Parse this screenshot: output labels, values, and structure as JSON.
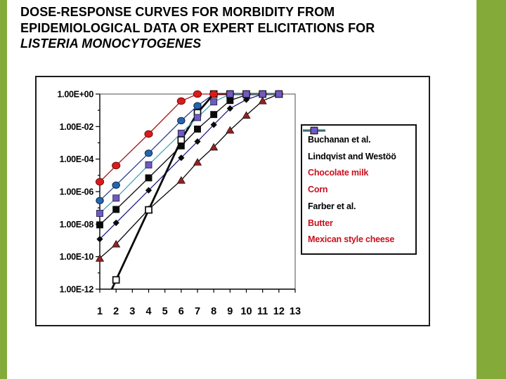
{
  "slide": {
    "title_line1": "DOSE-RESPONSE CURVES FOR MORBIDITY FROM",
    "title_line2": "EPIDEMIOLOGICAL DATA OR EXPERT ELICITATIONS FOR",
    "title_species": "LISTERIA MONOCYTOGENES",
    "accent_bar_color": "#84AA3A"
  },
  "chart_data": {
    "type": "line",
    "title": "",
    "xlabel": "",
    "ylabel": "",
    "grid": false,
    "legend_position": "right",
    "y_axis": {
      "scale": "log",
      "max": 1,
      "min": 1e-12,
      "tick_labels": [
        "1.00E+00",
        "1.00E-02",
        "1.00E-04",
        "1.00E-06",
        "1.00E-08",
        "1.00E-10",
        "1.00E-12"
      ]
    },
    "x_axis": {
      "min": 1,
      "max": 13,
      "tick_labels": [
        "1",
        "2",
        "3",
        "4",
        "5",
        "6",
        "7",
        "8",
        "9",
        "10",
        "11",
        "12",
        "13"
      ]
    },
    "red_label_color": "#C8101E",
    "series": [
      {
        "name": "Buchanan et al.",
        "label_color": "#000000",
        "line_color": "#22227A",
        "line_width": 1.3,
        "marker": "diamond",
        "marker_fill": "#0a0a0a",
        "marker_stroke": "#0a0a0a",
        "points": [
          [
            1,
            1.2e-09
          ],
          [
            2,
            1.2e-08
          ],
          [
            4,
            1.2e-06
          ],
          [
            6,
            0.00012
          ],
          [
            7,
            0.0012
          ],
          [
            8,
            0.013
          ],
          [
            9,
            0.13
          ],
          [
            10,
            0.45
          ],
          [
            11,
            1
          ],
          [
            12,
            1
          ]
        ]
      },
      {
        "name": "Lindqvist and Westöö",
        "label_color": "#000000",
        "line_color": "#0a0a0a",
        "line_width": 1.3,
        "marker": "square",
        "marker_fill": "#0a0a0a",
        "marker_stroke": "#0a0a0a",
        "points": [
          [
            1,
            9e-09
          ],
          [
            2,
            8e-08
          ],
          [
            4,
            7e-06
          ],
          [
            6,
            0.00065
          ],
          [
            7,
            0.007
          ],
          [
            8,
            0.055
          ],
          [
            9,
            0.4
          ],
          [
            10,
            0.9
          ],
          [
            11,
            1
          ],
          [
            12,
            1
          ]
        ]
      },
      {
        "name": "Chocolate milk",
        "label_color": "#C8101E",
        "line_color": "#0a0a0a",
        "line_width": 1.3,
        "marker": "triangle",
        "marker_fill": "#8E2424",
        "marker_stroke": "#2A0A0A",
        "points": [
          [
            1,
            8e-11
          ],
          [
            2,
            6e-10
          ],
          [
            4,
            8e-08
          ],
          [
            6,
            5e-06
          ],
          [
            7,
            6.5e-05
          ],
          [
            8,
            0.00055
          ],
          [
            9,
            0.006
          ],
          [
            10,
            0.05
          ],
          [
            11,
            0.38
          ],
          [
            12,
            1
          ]
        ]
      },
      {
        "name": "Corn",
        "label_color": "#C8101E",
        "line_color": "#26418F",
        "line_width": 1.3,
        "marker": "circle",
        "marker_fill": "#2565B0",
        "marker_stroke": "#0A2A4A",
        "points": [
          [
            1,
            2.8e-07
          ],
          [
            2,
            2.5e-06
          ],
          [
            4,
            0.00023
          ],
          [
            6,
            0.023
          ],
          [
            7,
            0.19
          ],
          [
            8,
            1
          ],
          [
            9,
            1
          ],
          [
            10,
            1
          ],
          [
            11,
            1
          ],
          [
            12,
            1
          ]
        ]
      },
      {
        "name": "Farber et al.",
        "label_color": "#000000",
        "line_color": "#0a0a0a",
        "line_width": 2.8,
        "marker": "open-square",
        "marker_fill": "#ffffff",
        "marker_stroke": "#0a0a0a",
        "clipped_at_start": true,
        "points": [
          [
            2,
            3.7e-12
          ],
          [
            4,
            7.5e-08
          ],
          [
            6,
            0.0015
          ],
          [
            7,
            0.07
          ],
          [
            8,
            1
          ],
          [
            9,
            1
          ],
          [
            10,
            1
          ],
          [
            11,
            1
          ],
          [
            12,
            1
          ]
        ]
      },
      {
        "name": "Butter",
        "label_color": "#C8101E",
        "line_color": "#A31515",
        "line_width": 1.3,
        "marker": "ellipse",
        "marker_fill": "#DD1A1A",
        "marker_stroke": "#6A0E0E",
        "points": [
          [
            1,
            4e-06
          ],
          [
            2,
            4e-05
          ],
          [
            4,
            0.0035
          ],
          [
            6,
            0.37
          ],
          [
            7,
            1
          ],
          [
            8,
            1
          ],
          [
            9,
            1
          ],
          [
            10,
            1
          ],
          [
            11,
            1
          ],
          [
            12,
            1
          ]
        ]
      },
      {
        "name": "Mexican style cheese",
        "label_color": "#C8101E",
        "line_color": "#45A3B8",
        "line_width": 1.3,
        "marker": "square",
        "marker_fill": "#6E5BC2",
        "marker_stroke": "#26204E",
        "points": [
          [
            1,
            4.6e-08
          ],
          [
            2,
            4e-07
          ],
          [
            4,
            4.4e-05
          ],
          [
            6,
            0.0039
          ],
          [
            7,
            0.036
          ],
          [
            8,
            0.33
          ],
          [
            9,
            1
          ],
          [
            10,
            1
          ],
          [
            11,
            1
          ],
          [
            12,
            1
          ]
        ]
      }
    ]
  }
}
